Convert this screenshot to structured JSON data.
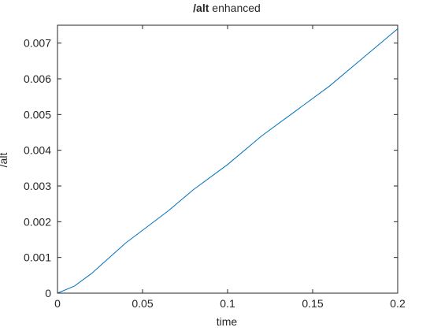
{
  "chart_data": {
    "type": "line",
    "title": {
      "bold": "/alt",
      "rest": " enhanced"
    },
    "xlabel": "time",
    "ylabel": "/alt",
    "xlim": [
      0,
      0.2
    ],
    "ylim": [
      0,
      0.0075
    ],
    "xticks": [
      0,
      0.05,
      0.1,
      0.15,
      0.2
    ],
    "xtick_labels": [
      "0",
      "0.05",
      "0.1",
      "0.15",
      "0.2"
    ],
    "yticks": [
      0,
      0.001,
      0.002,
      0.003,
      0.004,
      0.005,
      0.006,
      0.007
    ],
    "ytick_labels": [
      "0",
      "0.001",
      "0.002",
      "0.003",
      "0.004",
      "0.005",
      "0.006",
      "0.007"
    ],
    "grid": false,
    "box": true,
    "series": [
      {
        "color": "#0072BD",
        "x": [
          0,
          0.01,
          0.02,
          0.04,
          0.065,
          0.08,
          0.1,
          0.12,
          0.14,
          0.16,
          0.18,
          0.2
        ],
        "y": [
          0,
          0.0002,
          0.00055,
          0.0014,
          0.0023,
          0.0029,
          0.0036,
          0.0044,
          0.0051,
          0.0058,
          0.0066,
          0.0074
        ]
      }
    ]
  }
}
